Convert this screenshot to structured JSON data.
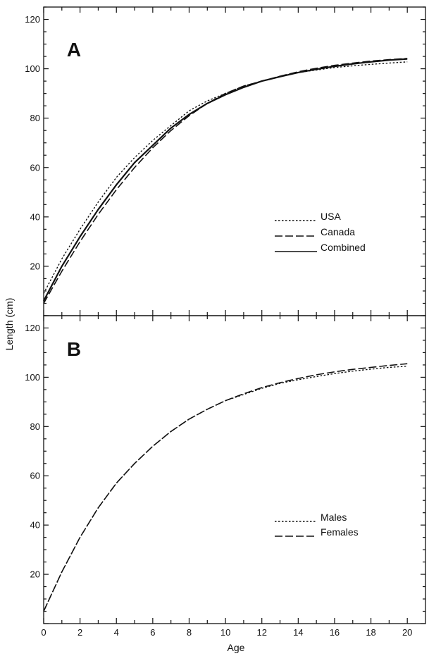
{
  "chart_data": [
    {
      "panel": "A",
      "type": "line",
      "xlabel": "Age",
      "ylabel": "Length (cm)",
      "xlim": [
        0,
        21
      ],
      "ylim": [
        0,
        125
      ],
      "x_ticks": [
        0,
        2,
        4,
        6,
        8,
        10,
        12,
        14,
        16,
        18,
        20
      ],
      "y_ticks": [
        20,
        40,
        60,
        80,
        100,
        120
      ],
      "legend_position": "middle-right",
      "series": [
        {
          "name": "USA",
          "style": "dotted",
          "x": [
            0,
            1,
            2,
            3,
            4,
            5,
            6,
            7,
            8,
            9,
            10,
            11,
            12,
            13,
            14,
            15,
            16,
            17,
            18,
            19,
            20
          ],
          "y": [
            9,
            23,
            35,
            46,
            56,
            64,
            71,
            77,
            83,
            87,
            90,
            93,
            95,
            97,
            98.5,
            99.5,
            100.5,
            101.2,
            101.8,
            102.3,
            102.8
          ]
        },
        {
          "name": "Canada",
          "style": "dashed",
          "x": [
            0,
            1,
            2,
            3,
            4,
            5,
            6,
            7,
            8,
            9,
            10,
            11,
            12,
            13,
            14,
            15,
            16,
            17,
            18,
            19,
            20
          ],
          "y": [
            5,
            18,
            30,
            41,
            51,
            60,
            68,
            75,
            81,
            86,
            90,
            93,
            95,
            97,
            98.8,
            100.2,
            101.4,
            102.3,
            103.1,
            103.7,
            104.2
          ]
        },
        {
          "name": "Combined",
          "style": "solid",
          "x": [
            0,
            1,
            2,
            3,
            4,
            5,
            6,
            7,
            8,
            9,
            10,
            11,
            12,
            13,
            14,
            15,
            16,
            17,
            18,
            19,
            20
          ],
          "y": [
            6,
            20,
            32,
            43,
            53,
            62,
            69,
            76,
            81.5,
            86,
            89.5,
            92.5,
            95,
            96.8,
            98.5,
            99.8,
            101,
            102,
            102.8,
            103.5,
            104
          ]
        }
      ]
    },
    {
      "panel": "B",
      "type": "line",
      "xlabel": "Age",
      "ylabel": "Length (cm)",
      "xlim": [
        0,
        21
      ],
      "ylim": [
        0,
        125
      ],
      "x_ticks": [
        0,
        2,
        4,
        6,
        8,
        10,
        12,
        14,
        16,
        18,
        20
      ],
      "y_ticks": [
        20,
        40,
        60,
        80,
        100,
        120
      ],
      "legend_position": "lower-right",
      "series": [
        {
          "name": "Males",
          "style": "dotted",
          "x": [
            0,
            1,
            2,
            3,
            4,
            5,
            6,
            7,
            8,
            9,
            10,
            11,
            12,
            13,
            14,
            15,
            16,
            17,
            18,
            19,
            20
          ],
          "y": [
            5,
            21,
            35,
            47,
            57,
            65,
            72,
            78,
            83,
            87,
            90.5,
            93,
            95.5,
            97.5,
            99,
            100.3,
            101.5,
            102.5,
            103.3,
            104,
            104.5
          ]
        },
        {
          "name": "Females",
          "style": "dashed",
          "x": [
            0,
            1,
            2,
            3,
            4,
            5,
            6,
            7,
            8,
            9,
            10,
            11,
            12,
            13,
            14,
            15,
            16,
            17,
            18,
            19,
            20
          ],
          "y": [
            5,
            21,
            35,
            47,
            57,
            65,
            72,
            78,
            83,
            87,
            90.5,
            93.3,
            95.8,
            97.8,
            99.5,
            101,
            102.2,
            103.2,
            104,
            104.8,
            105.5
          ]
        }
      ]
    }
  ],
  "labels": {
    "panel_a": "A",
    "panel_b": "B",
    "y_axis_title": "Length (cm)",
    "x_axis_title": "Age",
    "legend_a": [
      "USA",
      "Canada",
      "Combined"
    ],
    "legend_b": [
      "Males",
      "Females"
    ]
  }
}
